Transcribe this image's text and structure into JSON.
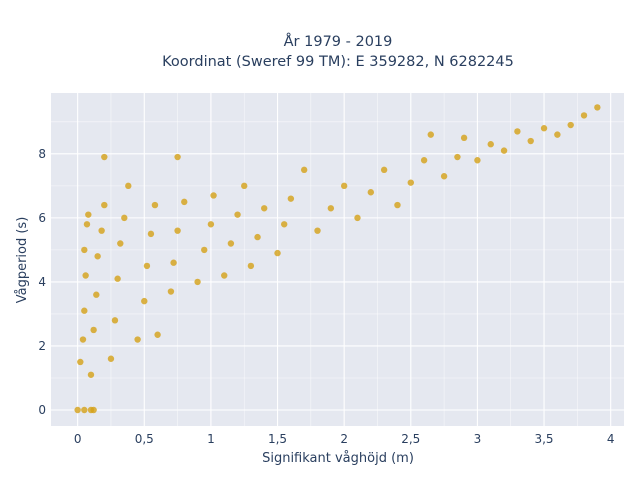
{
  "chart_data": {
    "type": "scatter",
    "title_line1": "År 1979 - 2019",
    "title_line2": "Koordinat (Sweref 99 TM): E 359282, N 6282245",
    "xlabel": "Signifikant våghöjd (m)",
    "ylabel": "Vågperiod (s)",
    "xlim": [
      -0.2,
      4.1
    ],
    "ylim": [
      -0.5,
      9.9
    ],
    "x_ticks": [
      0,
      0.5,
      1,
      1.5,
      2,
      2.5,
      3,
      3.5,
      4
    ],
    "x_tick_labels": [
      "0",
      "0,5",
      "1",
      "1,5",
      "2",
      "2,5",
      "3",
      "3,5",
      "4"
    ],
    "y_ticks": [
      0,
      2,
      4,
      6,
      8
    ],
    "y_tick_labels": [
      "0",
      "2",
      "4",
      "6",
      "8"
    ],
    "grid": true,
    "colors": {
      "points": "#D4A017",
      "plot_background": "#E5E8F0",
      "grid": "#ffffff",
      "text": "#2a3f5f"
    },
    "points": [
      [
        0.02,
        1.5
      ],
      [
        0.04,
        2.2
      ],
      [
        0.05,
        3.1
      ],
      [
        0.06,
        4.2
      ],
      [
        0.05,
        5.0
      ],
      [
        0.07,
        5.8
      ],
      [
        0.08,
        6.1
      ],
      [
        0.1,
        1.1
      ],
      [
        0.12,
        2.5
      ],
      [
        0.14,
        3.6
      ],
      [
        0.15,
        4.8
      ],
      [
        0.18,
        5.6
      ],
      [
        0.2,
        6.4
      ],
      [
        0.2,
        7.9
      ],
      [
        0.25,
        1.6
      ],
      [
        0.28,
        2.8
      ],
      [
        0.3,
        4.1
      ],
      [
        0.32,
        5.2
      ],
      [
        0.35,
        6.0
      ],
      [
        0.38,
        7.0
      ],
      [
        0.45,
        2.2
      ],
      [
        0.5,
        3.4
      ],
      [
        0.52,
        4.5
      ],
      [
        0.55,
        5.5
      ],
      [
        0.58,
        6.4
      ],
      [
        0.6,
        2.35
      ],
      [
        0.7,
        3.7
      ],
      [
        0.72,
        4.6
      ],
      [
        0.75,
        5.6
      ],
      [
        0.75,
        7.9
      ],
      [
        0.8,
        6.5
      ],
      [
        0.9,
        4.0
      ],
      [
        0.95,
        5.0
      ],
      [
        1.0,
        5.8
      ],
      [
        1.02,
        6.7
      ],
      [
        1.1,
        4.2
      ],
      [
        1.15,
        5.2
      ],
      [
        1.2,
        6.1
      ],
      [
        1.25,
        7.0
      ],
      [
        1.3,
        4.5
      ],
      [
        1.35,
        5.4
      ],
      [
        1.4,
        6.3
      ],
      [
        1.5,
        4.9
      ],
      [
        1.55,
        5.8
      ],
      [
        1.6,
        6.6
      ],
      [
        1.7,
        7.5
      ],
      [
        1.8,
        5.6
      ],
      [
        1.9,
        6.3
      ],
      [
        2.0,
        7.0
      ],
      [
        2.1,
        6.0
      ],
      [
        2.2,
        6.8
      ],
      [
        2.3,
        7.5
      ],
      [
        2.4,
        6.4
      ],
      [
        2.5,
        7.1
      ],
      [
        2.6,
        7.8
      ],
      [
        2.65,
        8.6
      ],
      [
        2.75,
        7.3
      ],
      [
        2.85,
        7.9
      ],
      [
        2.9,
        8.5
      ],
      [
        3.0,
        7.8
      ],
      [
        3.1,
        8.3
      ],
      [
        3.2,
        8.1
      ],
      [
        3.3,
        8.7
      ],
      [
        3.4,
        8.4
      ],
      [
        3.5,
        8.8
      ],
      [
        3.6,
        8.6
      ],
      [
        3.7,
        8.9
      ],
      [
        3.8,
        9.2
      ],
      [
        3.9,
        9.45
      ],
      [
        0.0,
        0.0
      ],
      [
        0.05,
        0.0
      ],
      [
        0.1,
        0.0
      ],
      [
        0.12,
        0.0
      ]
    ]
  }
}
